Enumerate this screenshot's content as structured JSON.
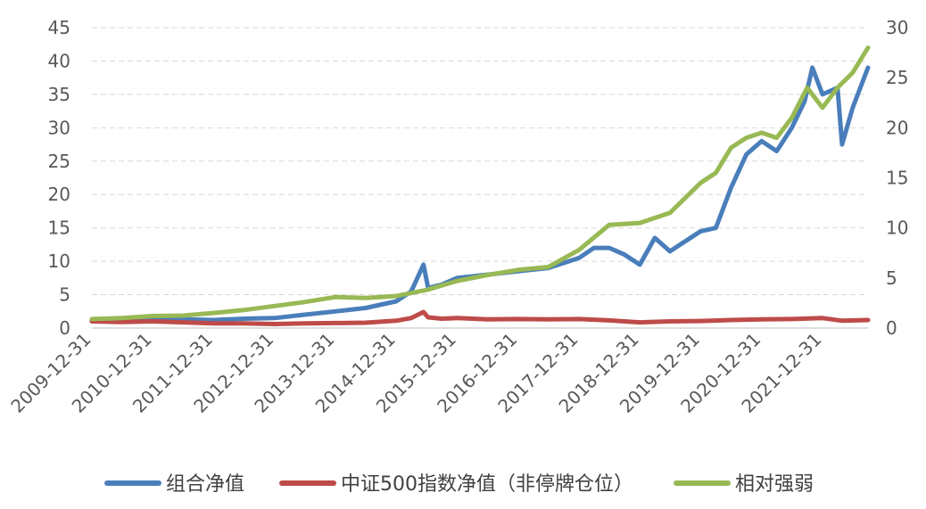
{
  "chart_data": {
    "type": "line",
    "title": "",
    "xlabel": "",
    "ylabel": "",
    "ylim_left": [
      0,
      45
    ],
    "ylim_right": [
      0,
      30
    ],
    "y_ticks_left": [
      0,
      5,
      10,
      15,
      20,
      25,
      30,
      35,
      40,
      45
    ],
    "y_ticks_right": [
      0,
      5,
      10,
      15,
      20,
      25,
      30
    ],
    "x_range": [
      "2009-12-31",
      "2022-09-30"
    ],
    "x_tick_labels": [
      "2009-12-31",
      "2010-12-31",
      "2011-12-31",
      "2012-12-31",
      "2013-12-31",
      "2014-12-31",
      "2015-12-31",
      "2016-12-31",
      "2017-12-31",
      "2018-12-31",
      "2019-12-31",
      "2020-12-31",
      "2021-12-31"
    ],
    "grid": true,
    "legend_position": "bottom",
    "series": [
      {
        "name": "组合净值",
        "axis": "left",
        "color": "#4a7ebb",
        "x": [
          "2009-12-31",
          "2010-06-30",
          "2010-12-31",
          "2011-06-30",
          "2011-12-31",
          "2012-06-30",
          "2012-12-31",
          "2013-06-30",
          "2013-12-31",
          "2014-06-30",
          "2014-12-31",
          "2015-03-31",
          "2015-06-12",
          "2015-07-10",
          "2015-09-30",
          "2015-12-31",
          "2016-06-30",
          "2016-12-31",
          "2017-06-30",
          "2017-12-31",
          "2018-03-31",
          "2018-06-30",
          "2018-09-30",
          "2018-12-31",
          "2019-03-31",
          "2019-06-30",
          "2019-09-30",
          "2019-12-31",
          "2020-03-31",
          "2020-06-30",
          "2020-09-30",
          "2020-12-31",
          "2021-03-31",
          "2021-06-30",
          "2021-09-15",
          "2021-10-31",
          "2021-12-31",
          "2022-03-31",
          "2022-04-27",
          "2022-06-30",
          "2022-09-30"
        ],
        "values": [
          1.0,
          1.1,
          1.3,
          1.3,
          1.2,
          1.4,
          1.5,
          2.0,
          2.5,
          3.0,
          4.0,
          5.5,
          9.5,
          6.0,
          6.5,
          7.5,
          8.0,
          8.5,
          9.0,
          10.5,
          12.0,
          12.0,
          11.0,
          9.5,
          13.5,
          11.5,
          13.0,
          14.5,
          15.0,
          21.0,
          26.0,
          28.0,
          26.5,
          30.0,
          34.0,
          39.0,
          35.0,
          36.0,
          27.5,
          33.0,
          39.0
        ]
      },
      {
        "name": "中证500指数净值（非停牌仓位）",
        "axis": "left",
        "color": "#be4b48",
        "x": [
          "2009-12-31",
          "2010-06-30",
          "2010-12-31",
          "2011-06-30",
          "2011-12-31",
          "2012-06-30",
          "2012-12-31",
          "2013-06-30",
          "2013-12-31",
          "2014-06-30",
          "2014-12-31",
          "2015-03-31",
          "2015-06-12",
          "2015-07-10",
          "2015-09-30",
          "2015-12-31",
          "2016-06-30",
          "2016-12-31",
          "2017-06-30",
          "2017-12-31",
          "2018-06-30",
          "2018-12-31",
          "2019-06-30",
          "2019-12-31",
          "2020-06-30",
          "2020-12-31",
          "2021-06-30",
          "2021-12-31",
          "2022-04-27",
          "2022-09-30"
        ],
        "values": [
          1.0,
          0.9,
          1.0,
          0.85,
          0.7,
          0.7,
          0.6,
          0.7,
          0.75,
          0.8,
          1.1,
          1.5,
          2.4,
          1.6,
          1.4,
          1.5,
          1.3,
          1.35,
          1.3,
          1.35,
          1.15,
          0.85,
          1.0,
          1.05,
          1.2,
          1.3,
          1.35,
          1.5,
          1.1,
          1.2
        ]
      },
      {
        "name": "相对强弱",
        "axis": "right",
        "color": "#98b954",
        "x": [
          "2009-12-31",
          "2010-06-30",
          "2010-12-31",
          "2011-06-30",
          "2011-12-31",
          "2012-06-30",
          "2012-12-31",
          "2013-06-30",
          "2013-12-31",
          "2014-06-30",
          "2014-12-31",
          "2015-06-30",
          "2015-12-31",
          "2016-06-30",
          "2016-12-31",
          "2017-06-30",
          "2017-12-31",
          "2018-06-30",
          "2018-12-31",
          "2019-06-30",
          "2019-12-31",
          "2020-03-31",
          "2020-06-30",
          "2020-09-30",
          "2020-12-31",
          "2021-03-31",
          "2021-06-30",
          "2021-09-30",
          "2021-12-31",
          "2022-03-31",
          "2022-06-30",
          "2022-09-30"
        ],
        "values": [
          0.9,
          1.0,
          1.2,
          1.25,
          1.5,
          1.8,
          2.2,
          2.6,
          3.1,
          3.0,
          3.2,
          3.8,
          4.7,
          5.3,
          5.8,
          6.1,
          7.8,
          10.3,
          10.5,
          11.5,
          14.5,
          15.5,
          18.0,
          19.0,
          19.5,
          19.0,
          21.0,
          24.0,
          22.0,
          24.0,
          25.5,
          28.0
        ]
      }
    ]
  }
}
